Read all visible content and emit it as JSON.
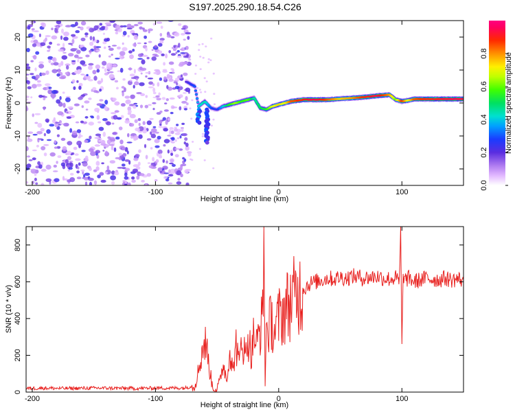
{
  "title": "S197.2025.290.18.54.C26",
  "colors": {
    "snr_line": "#e8201e",
    "spectro_noise": "#8a2be2",
    "frame": "#000000"
  },
  "colorbar": {
    "label": "Normalized spectral amplitude",
    "ticks": [
      "0.0",
      "0.2",
      "0.4",
      "0.6",
      "0.8"
    ],
    "tick_values": [
      0.0,
      0.2,
      0.4,
      0.6,
      0.8
    ],
    "range": [
      0,
      1
    ]
  },
  "chart_data": [
    {
      "type": "heatmap",
      "name": "spectrogram",
      "xlabel": "Height of straight line (km)",
      "ylabel": "Frequency (Hz)",
      "xlim": [
        -205,
        150
      ],
      "ylim": [
        -25,
        25
      ],
      "x_ticks": [
        -200,
        -100,
        0,
        100
      ],
      "x_tick_labels": [
        "-200",
        "-100",
        "0",
        "100"
      ],
      "y_ticks": [
        -20,
        -10,
        0,
        10,
        20
      ],
      "y_tick_labels": [
        "-20",
        "-10",
        "0",
        "10",
        "20"
      ],
      "noise_region": {
        "x_range": [
          -205,
          -72
        ],
        "freq_range": [
          -25,
          25
        ],
        "amplitude_range": [
          0.05,
          0.25
        ]
      },
      "ridge": [
        {
          "x": -75,
          "f": 6.5,
          "a": 0.2
        },
        {
          "x": -68,
          "f": 5.0,
          "a": 0.3
        },
        {
          "x": -65,
          "f": -1.0,
          "a": 0.4
        },
        {
          "x": -60,
          "f": 0.5,
          "a": 0.45
        },
        {
          "x": -55,
          "f": -1.5,
          "a": 0.3
        },
        {
          "x": -50,
          "f": -2.0,
          "a": 0.25
        },
        {
          "x": -45,
          "f": -1.0,
          "a": 0.4
        },
        {
          "x": -40,
          "f": -0.5,
          "a": 0.55
        },
        {
          "x": -35,
          "f": 0.0,
          "a": 0.65
        },
        {
          "x": -30,
          "f": 0.5,
          "a": 0.55
        },
        {
          "x": -25,
          "f": 1.0,
          "a": 0.6
        },
        {
          "x": -20,
          "f": 1.5,
          "a": 0.45
        },
        {
          "x": -15,
          "f": -1.5,
          "a": 0.5
        },
        {
          "x": -10,
          "f": -2.0,
          "a": 0.55
        },
        {
          "x": -5,
          "f": -1.0,
          "a": 0.7
        },
        {
          "x": 0,
          "f": -0.5,
          "a": 0.75
        },
        {
          "x": 5,
          "f": 0.0,
          "a": 0.7
        },
        {
          "x": 10,
          "f": 0.5,
          "a": 0.85
        },
        {
          "x": 20,
          "f": 1.0,
          "a": 0.9
        },
        {
          "x": 30,
          "f": 1.0,
          "a": 0.95
        },
        {
          "x": 40,
          "f": 1.0,
          "a": 0.85
        },
        {
          "x": 50,
          "f": 1.3,
          "a": 0.75
        },
        {
          "x": 60,
          "f": 1.5,
          "a": 0.8
        },
        {
          "x": 70,
          "f": 1.8,
          "a": 0.9
        },
        {
          "x": 80,
          "f": 2.2,
          "a": 0.95
        },
        {
          "x": 90,
          "f": 2.5,
          "a": 0.8
        },
        {
          "x": 95,
          "f": 1.0,
          "a": 0.6
        },
        {
          "x": 100,
          "f": 0.5,
          "a": 0.9
        },
        {
          "x": 105,
          "f": 0.8,
          "a": 0.7
        },
        {
          "x": 110,
          "f": 1.2,
          "a": 0.85
        },
        {
          "x": 120,
          "f": 1.2,
          "a": 0.9
        },
        {
          "x": 130,
          "f": 1.2,
          "a": 0.92
        },
        {
          "x": 140,
          "f": 1.2,
          "a": 0.95
        },
        {
          "x": 150,
          "f": 1.2,
          "a": 0.95
        }
      ],
      "tails": [
        {
          "x": -58,
          "f_from": -2,
          "f_to": -12,
          "a": 0.25
        },
        {
          "x": -65,
          "f_from": -2,
          "f_to": -6,
          "a": 0.3
        }
      ]
    },
    {
      "type": "line",
      "name": "snr",
      "xlabel": "Height of straight line (km)",
      "ylabel": "SNR (10 * v/v)",
      "xlim": [
        -205,
        150
      ],
      "ylim": [
        0,
        900
      ],
      "x_ticks": [
        -200,
        -100,
        0,
        100
      ],
      "x_tick_labels": [
        "-200",
        "-100",
        "0",
        "100"
      ],
      "y_ticks": [
        0,
        200,
        400,
        600,
        800
      ],
      "y_tick_labels": [
        "0",
        "200",
        "400",
        "600",
        "800"
      ],
      "series": [
        {
          "name": "SNR",
          "x": [
            -205,
            -190,
            -175,
            -160,
            -145,
            -130,
            -115,
            -100,
            -85,
            -75,
            -68,
            -65,
            -62,
            -60,
            -58,
            -56,
            -54,
            -52,
            -50,
            -48,
            -45,
            -42,
            -40,
            -37,
            -35,
            -32,
            -30,
            -27,
            -25,
            -22,
            -20,
            -18,
            -15,
            -13,
            -12,
            -11,
            -10,
            -8,
            -5,
            -3,
            0,
            5,
            10,
            15,
            20,
            25,
            30,
            35,
            40,
            45,
            50,
            55,
            60,
            65,
            70,
            75,
            80,
            85,
            90,
            95,
            98,
            99,
            100,
            101,
            103,
            106,
            110,
            115,
            120,
            125,
            130,
            135,
            140,
            145,
            150
          ],
          "y": [
            20,
            22,
            20,
            21,
            22,
            21,
            20,
            22,
            22,
            23,
            40,
            120,
            230,
            270,
            220,
            120,
            40,
            20,
            25,
            40,
            160,
            60,
            250,
            100,
            280,
            140,
            320,
            180,
            310,
            200,
            330,
            250,
            350,
            400,
            800,
            60,
            330,
            360,
            380,
            330,
            400,
            450,
            500,
            530,
            560,
            590,
            600,
            610,
            620,
            615,
            625,
            620,
            630,
            625,
            620,
            625,
            630,
            620,
            615,
            620,
            600,
            880,
            230,
            640,
            610,
            620,
            600,
            610,
            620,
            615,
            610,
            620,
            610,
            615,
            610
          ]
        }
      ],
      "color": "#e8201e"
    }
  ]
}
